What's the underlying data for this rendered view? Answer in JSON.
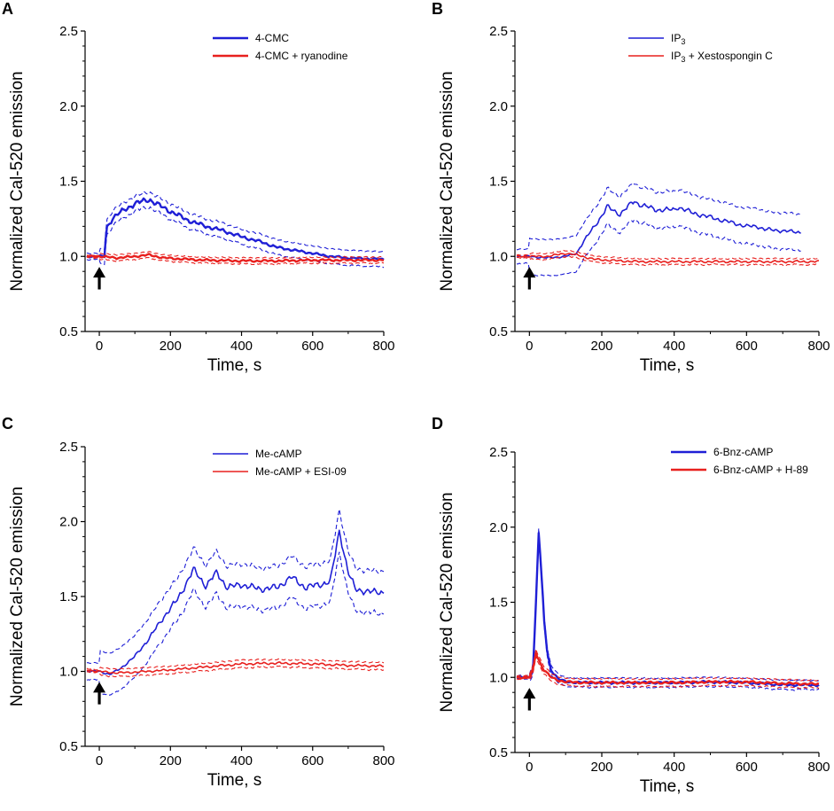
{
  "chart_data": [
    {
      "panel": "A",
      "type": "line",
      "xlabel": "Time, s",
      "ylabel": "Normalized Cal-520 emission",
      "xlim": [
        -40,
        800
      ],
      "ylim": [
        0.5,
        2.5
      ],
      "xticks": [
        0,
        200,
        400,
        600,
        800
      ],
      "xtick_labels": [
        "0",
        "200",
        "400",
        "600",
        "800"
      ],
      "yticks": [
        0.5,
        1.0,
        1.5,
        2.0,
        2.5
      ],
      "ytick_labels": [
        "0.5",
        "1.0",
        "1.5",
        "2.0",
        "2.5"
      ],
      "arrow_at": 0,
      "legend_position": "top-right",
      "dashed_band": true,
      "series": [
        {
          "name": "4-CMC",
          "sub": "",
          "name_after": "",
          "color": "#1f1fd6",
          "lw": 2.4,
          "band": 0.05,
          "x": [
            -35,
            0,
            15,
            20,
            40,
            70,
            100,
            140,
            160,
            200,
            250,
            300,
            350,
            400,
            450,
            500,
            550,
            600,
            650,
            700,
            750,
            800
          ],
          "y": [
            1.0,
            1.0,
            1.0,
            1.19,
            1.26,
            1.31,
            1.35,
            1.38,
            1.35,
            1.3,
            1.24,
            1.2,
            1.17,
            1.13,
            1.1,
            1.06,
            1.04,
            1.02,
            1.0,
            0.99,
            0.985,
            0.98
          ]
        },
        {
          "name": "4-CMC + ryanodine",
          "sub": "",
          "name_after": "",
          "color": "#e8201e",
          "lw": 2.4,
          "band": 0.02,
          "x": [
            -35,
            0,
            50,
            100,
            140,
            180,
            250,
            300,
            400,
            500,
            600,
            700,
            800
          ],
          "y": [
            1.0,
            1.0,
            0.99,
            1.0,
            1.01,
            0.99,
            0.98,
            0.975,
            0.97,
            0.97,
            0.975,
            0.975,
            0.975
          ]
        }
      ]
    },
    {
      "panel": "B",
      "type": "line",
      "xlabel": "Time, s",
      "ylabel": "Normalized Cal-520 emission",
      "xlim": [
        -40,
        800
      ],
      "ylim": [
        0.5,
        2.5
      ],
      "xticks": [
        0,
        200,
        400,
        600,
        800
      ],
      "xtick_labels": [
        "0",
        "200",
        "400",
        "600",
        "800"
      ],
      "yticks": [
        0.5,
        1.0,
        1.5,
        2.0,
        2.5
      ],
      "ytick_labels": [
        "0.5",
        "1.0",
        "1.5",
        "2.0",
        "2.5"
      ],
      "arrow_at": 0,
      "legend_position": "top-right",
      "dashed_band": true,
      "series": [
        {
          "name": "IP",
          "sub": "3",
          "name_after": "",
          "color": "#1f1fd6",
          "lw": 1.6,
          "band": 0.12,
          "x": [
            -35,
            0,
            50,
            100,
            130,
            150,
            200,
            215,
            250,
            290,
            300,
            350,
            400,
            410,
            450,
            500,
            550,
            600,
            630,
            650,
            700,
            750
          ],
          "y": [
            1.0,
            1.0,
            0.99,
            1.0,
            1.02,
            1.1,
            1.27,
            1.33,
            1.28,
            1.37,
            1.35,
            1.31,
            1.31,
            1.33,
            1.29,
            1.26,
            1.23,
            1.2,
            1.2,
            1.18,
            1.17,
            1.16
          ]
        },
        {
          "name": "IP",
          "sub": "3",
          "name_after": " + Xestospongin C",
          "color": "#e8201e",
          "lw": 1.6,
          "band": 0.02,
          "x": [
            -35,
            0,
            50,
            100,
            130,
            180,
            250,
            300,
            400,
            500,
            600,
            700,
            800
          ],
          "y": [
            1.0,
            1.0,
            1.0,
            1.02,
            1.01,
            0.98,
            0.97,
            0.965,
            0.965,
            0.965,
            0.965,
            0.965,
            0.965
          ]
        }
      ]
    },
    {
      "panel": "C",
      "type": "line",
      "xlabel": "Time, s",
      "ylabel": "Normalized Cal-520 emission",
      "xlim": [
        -40,
        800
      ],
      "ylim": [
        0.5,
        2.5
      ],
      "xticks": [
        0,
        200,
        400,
        600,
        800
      ],
      "xtick_labels": [
        "0",
        "200",
        "400",
        "600",
        "800"
      ],
      "yticks": [
        0.5,
        1.0,
        1.5,
        2.0,
        2.5
      ],
      "ytick_labels": [
        "0.5",
        "1.0",
        "1.5",
        "2.0",
        "2.5"
      ],
      "arrow_at": 0,
      "legend_position": "top-right",
      "dashed_band": true,
      "series": [
        {
          "name": "Me-cAMP",
          "sub": "",
          "name_after": "",
          "color": "#1f1fd6",
          "lw": 1.6,
          "band": 0.14,
          "x": [
            -35,
            0,
            30,
            60,
            100,
            140,
            180,
            200,
            220,
            265,
            300,
            330,
            360,
            400,
            450,
            500,
            540,
            580,
            620,
            650,
            675,
            700,
            720,
            760,
            800
          ],
          "y": [
            1.0,
            1.0,
            0.98,
            1.02,
            1.1,
            1.22,
            1.36,
            1.42,
            1.48,
            1.68,
            1.57,
            1.66,
            1.56,
            1.58,
            1.55,
            1.56,
            1.63,
            1.56,
            1.58,
            1.6,
            1.94,
            1.66,
            1.55,
            1.53,
            1.53
          ]
        },
        {
          "name": "Me-cAMP + ESI-09",
          "sub": "",
          "name_after": "",
          "color": "#e8201e",
          "lw": 1.6,
          "band": 0.025,
          "x": [
            -35,
            0,
            50,
            100,
            200,
            300,
            400,
            500,
            600,
            700,
            800
          ],
          "y": [
            1.01,
            1.0,
            0.99,
            0.995,
            1.01,
            1.03,
            1.05,
            1.055,
            1.05,
            1.04,
            1.035
          ]
        }
      ]
    },
    {
      "panel": "D",
      "type": "line",
      "xlabel": "Time, s",
      "ylabel": "Normalized Cal-520 emission",
      "xlim": [
        -40,
        800
      ],
      "ylim": [
        0.5,
        2.5
      ],
      "xticks": [
        0,
        200,
        400,
        600,
        800
      ],
      "xtick_labels": [
        "0",
        "200",
        "400",
        "600",
        "800"
      ],
      "yticks": [
        0.5,
        1.0,
        1.5,
        2.0,
        2.5
      ],
      "ytick_labels": [
        "0.5",
        "1.0",
        "1.5",
        "2.0",
        "2.5"
      ],
      "arrow_at": 0,
      "legend_position": "top-right",
      "dashed_band": true,
      "series": [
        {
          "name": "6-Bnz-cAMP",
          "sub": "",
          "name_after": "",
          "color": "#1f1fd6",
          "lw": 2.4,
          "band": 0.03,
          "x": [
            -35,
            0,
            10,
            20,
            25,
            30,
            40,
            50,
            60,
            80,
            100,
            150,
            200,
            300,
            400,
            500,
            600,
            700,
            800
          ],
          "y": [
            1.0,
            1.0,
            1.05,
            1.6,
            2.0,
            1.8,
            1.4,
            1.15,
            1.05,
            0.99,
            0.97,
            0.965,
            0.965,
            0.965,
            0.965,
            0.97,
            0.965,
            0.95,
            0.95
          ]
        },
        {
          "name": "6-Bnz-cAMP + H-89",
          "sub": "",
          "name_after": "",
          "color": "#e8201e",
          "lw": 2.4,
          "band": 0.025,
          "x": [
            -35,
            0,
            10,
            18,
            25,
            40,
            60,
            80,
            100,
            150,
            200,
            300,
            400,
            500,
            600,
            700,
            800
          ],
          "y": [
            1.0,
            1.0,
            1.05,
            1.17,
            1.12,
            1.05,
            1.0,
            0.98,
            0.97,
            0.965,
            0.965,
            0.965,
            0.965,
            0.97,
            0.97,
            0.96,
            0.955
          ]
        }
      ]
    }
  ]
}
